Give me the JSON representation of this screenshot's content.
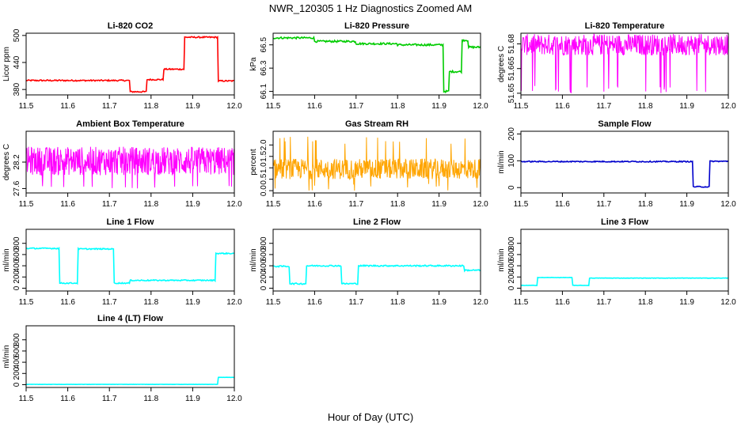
{
  "figure": {
    "title": "NWR_120305  1 Hz Diagnostics Zoomed AM",
    "xlabel": "Hour of Day (UTC)"
  },
  "chart_data": [
    {
      "type": "line",
      "title": "Li-820 CO2",
      "ylabel": "Licor ppm",
      "xlim": [
        11.5,
        12.0
      ],
      "ylim": [
        368,
        505
      ],
      "xticks": [
        11.5,
        11.6,
        11.7,
        11.8,
        11.9,
        12.0
      ],
      "xtick_labels": [
        "11.5",
        "11.6",
        "11.7",
        "11.8",
        "11.9",
        "12.0"
      ],
      "yticks": [
        380,
        440,
        500
      ],
      "ytick_labels": [
        "380",
        "440",
        "500"
      ],
      "series": [
        {
          "color": "#ff0000",
          "noise": 1.5,
          "segments": [
            [
              11.5,
              11.75,
              400
            ],
            [
              11.75,
              11.79,
              375
            ],
            [
              11.79,
              11.83,
              402
            ],
            [
              11.83,
              11.88,
              425
            ],
            [
              11.88,
              11.96,
              496
            ],
            [
              11.96,
              12.0,
              399
            ]
          ]
        }
      ]
    },
    {
      "type": "line",
      "title": "Li-820 Pressure",
      "ylabel": "kPa",
      "xlim": [
        11.5,
        12.0
      ],
      "ylim": [
        66.07,
        66.6
      ],
      "xticks": [
        11.5,
        11.6,
        11.7,
        11.8,
        11.9,
        12.0
      ],
      "xtick_labels": [
        "11.5",
        "11.6",
        "11.7",
        "11.8",
        "11.9",
        "12.0"
      ],
      "yticks": [
        66.1,
        66.3,
        66.5
      ],
      "ytick_labels": [
        "66.1",
        "66.3",
        "66.5"
      ],
      "series": [
        {
          "color": "#00cc00",
          "noise": 0.008,
          "segments": [
            [
              11.5,
              11.6,
              66.56
            ],
            [
              11.6,
              11.7,
              66.53
            ],
            [
              11.7,
              11.8,
              66.51
            ],
            [
              11.8,
              11.91,
              66.5
            ],
            [
              11.91,
              11.925,
              66.1
            ],
            [
              11.925,
              11.955,
              66.27
            ],
            [
              11.955,
              11.97,
              66.54
            ],
            [
              11.97,
              12.0,
              66.48
            ]
          ]
        }
      ]
    },
    {
      "type": "line",
      "title": "Li-820 Temperature",
      "ylabel": "degrees C",
      "xlim": [
        11.5,
        12.0
      ],
      "ylim": [
        51.649,
        51.6865
      ],
      "xticks": [
        11.5,
        11.6,
        11.7,
        11.8,
        11.9,
        12.0
      ],
      "xtick_labels": [
        "11.5",
        "11.6",
        "11.7",
        "11.8",
        "11.9",
        "12.0"
      ],
      "yticks": [
        51.65,
        51.665,
        51.68
      ],
      "ytick_labels": [
        "51.65",
        "51.665",
        "51.68"
      ],
      "series": [
        {
          "color": "#ff00ff",
          "band": [
            51.673,
            51.686
          ],
          "spike_to": 51.65
        }
      ]
    },
    {
      "type": "line",
      "title": "Ambient Box Temperature",
      "ylabel": "degrees C",
      "xlim": [
        11.5,
        12.0
      ],
      "ylim": [
        27.5,
        28.9
      ],
      "xticks": [
        11.5,
        11.6,
        11.7,
        11.8,
        11.9,
        12.0
      ],
      "xtick_labels": [
        "11.5",
        "11.6",
        "11.7",
        "11.8",
        "11.9",
        "12.0"
      ],
      "yticks": [
        27.6,
        28.2
      ],
      "ytick_labels": [
        "27.6",
        "28.2"
      ],
      "series": [
        {
          "color": "#ff00ff",
          "band": [
            27.9,
            28.55
          ],
          "spike_to": 27.6
        }
      ]
    },
    {
      "type": "line",
      "title": "Gas Stream RH",
      "ylabel": "percent",
      "xlim": [
        11.5,
        12.0
      ],
      "ylim": [
        -0.1,
        2.6
      ],
      "xticks": [
        11.5,
        11.6,
        11.7,
        11.8,
        11.9,
        12.0
      ],
      "xtick_labels": [
        "11.5",
        "11.6",
        "11.7",
        "11.8",
        "11.9",
        "12.0"
      ],
      "yticks": [
        0.0,
        0.5,
        1.0,
        1.5,
        2.0
      ],
      "ytick_labels": [
        "0.0",
        "0.5",
        "1.0",
        "1.5",
        "2.0"
      ],
      "series": [
        {
          "color": "#ffa500",
          "band": [
            0.5,
            1.4
          ],
          "spike_to": 2.4,
          "low_to": 0.0
        }
      ]
    },
    {
      "type": "line",
      "title": "Sample Flow",
      "ylabel": "ml/min",
      "xlim": [
        11.5,
        12.0
      ],
      "ylim": [
        -20,
        210
      ],
      "xticks": [
        11.5,
        11.6,
        11.7,
        11.8,
        11.9,
        12.0
      ],
      "xtick_labels": [
        "11.5",
        "11.6",
        "11.7",
        "11.8",
        "11.9",
        "12.0"
      ],
      "yticks": [
        0,
        100,
        200
      ],
      "ytick_labels": [
        "0",
        "100",
        "200"
      ],
      "series": [
        {
          "color": "#0000cc",
          "noise": 2,
          "segments": [
            [
              11.5,
              11.915,
              97
            ],
            [
              11.915,
              11.955,
              3
            ],
            [
              11.955,
              12.0,
              98
            ]
          ]
        }
      ]
    },
    {
      "type": "line",
      "title": "Line 1 Flow",
      "ylabel": "ml/min",
      "xlim": [
        11.5,
        12.0
      ],
      "ylim": [
        -50,
        1050
      ],
      "xticks": [
        11.5,
        11.6,
        11.7,
        11.8,
        11.9,
        12.0
      ],
      "xtick_labels": [
        "11.5",
        "11.6",
        "11.7",
        "11.8",
        "11.9",
        "12.0"
      ],
      "yticks": [
        0,
        200,
        400,
        600,
        800
      ],
      "ytick_labels": [
        "0",
        "200",
        "400",
        "600",
        "800"
      ],
      "series": [
        {
          "color": "#00ffff",
          "noise": 10,
          "segments": [
            [
              11.5,
              11.58,
              710
            ],
            [
              11.58,
              11.625,
              90
            ],
            [
              11.625,
              11.71,
              700
            ],
            [
              11.71,
              11.75,
              90
            ],
            [
              11.75,
              11.955,
              140
            ],
            [
              11.955,
              12.0,
              620
            ]
          ]
        }
      ]
    },
    {
      "type": "line",
      "title": "Line 2 Flow",
      "ylabel": "ml/min",
      "xlim": [
        11.5,
        12.0
      ],
      "ylim": [
        -50,
        1050
      ],
      "xticks": [
        11.5,
        11.6,
        11.7,
        11.8,
        11.9,
        12.0
      ],
      "xtick_labels": [
        "11.5",
        "11.6",
        "11.7",
        "11.8",
        "11.9",
        "12.0"
      ],
      "yticks": [
        0,
        200,
        400,
        600,
        800
      ],
      "ytick_labels": [
        "0",
        "200",
        "400",
        "600",
        "800"
      ],
      "series": [
        {
          "color": "#00ffff",
          "noise": 12,
          "segments": [
            [
              11.5,
              11.54,
              390
            ],
            [
              11.54,
              11.58,
              80
            ],
            [
              11.58,
              11.665,
              400
            ],
            [
              11.665,
              11.705,
              80
            ],
            [
              11.705,
              11.96,
              400
            ],
            [
              11.96,
              12.0,
              320
            ]
          ]
        }
      ]
    },
    {
      "type": "line",
      "title": "Line 3 Flow",
      "ylabel": "ml/min",
      "xlim": [
        11.5,
        12.0
      ],
      "ylim": [
        -50,
        1050
      ],
      "xticks": [
        11.5,
        11.6,
        11.7,
        11.8,
        11.9,
        12.0
      ],
      "xtick_labels": [
        "11.5",
        "11.6",
        "11.7",
        "11.8",
        "11.9",
        "12.0"
      ],
      "yticks": [
        0,
        200,
        400,
        600,
        800
      ],
      "ytick_labels": [
        "0",
        "200",
        "400",
        "600",
        "800"
      ],
      "series": [
        {
          "color": "#00ffff",
          "noise": 3,
          "segments": [
            [
              11.5,
              11.54,
              50
            ],
            [
              11.54,
              11.625,
              190
            ],
            [
              11.625,
              11.665,
              50
            ],
            [
              11.665,
              12.0,
              180
            ]
          ]
        }
      ]
    },
    {
      "type": "line",
      "title": "Line 4 (LT) Flow",
      "ylabel": "ml/min",
      "xlim": [
        11.5,
        12.0
      ],
      "ylim": [
        -50,
        1050
      ],
      "xticks": [
        11.5,
        11.6,
        11.7,
        11.8,
        11.9,
        12.0
      ],
      "xtick_labels": [
        "11.5",
        "11.6",
        "11.7",
        "11.8",
        "11.9",
        "12.0"
      ],
      "yticks": [
        0,
        200,
        400,
        600,
        800
      ],
      "ytick_labels": [
        "0",
        "200",
        "400",
        "600",
        "800"
      ],
      "series": [
        {
          "color": "#00ffff",
          "noise": 2,
          "segments": [
            [
              11.5,
              11.96,
              5
            ],
            [
              11.96,
              12.0,
              130
            ]
          ]
        }
      ]
    }
  ]
}
